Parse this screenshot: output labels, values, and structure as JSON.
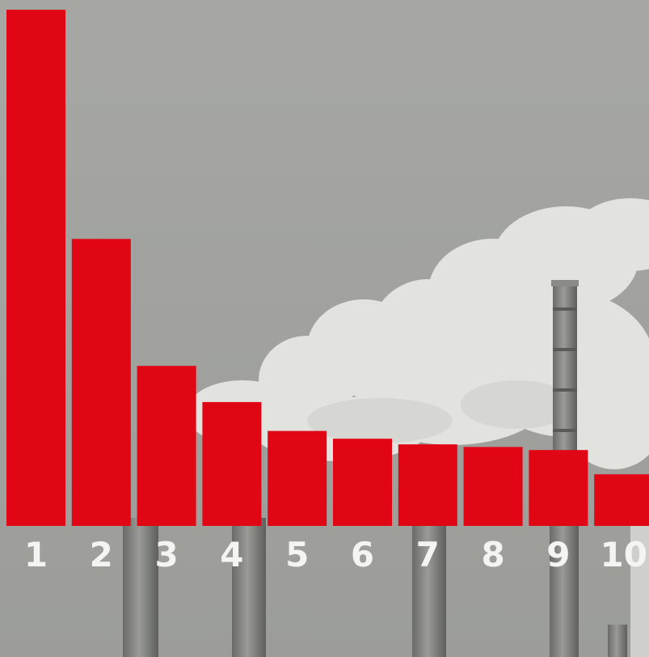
{
  "colors": {
    "bar": "#e10613",
    "tick_label": "#f4f4f2",
    "sky": "#a3a4a0",
    "smoke": "#e3e3df",
    "chimney": "#7d7e7b"
  },
  "background": {
    "image": "industrial-chimneys-smoke-photo"
  },
  "chart_data": {
    "type": "bar",
    "categories": [
      "1",
      "2",
      "3",
      "4",
      "5",
      "6",
      "7",
      "8",
      "9",
      "10"
    ],
    "values": [
      100,
      55.6,
      31,
      24,
      18.4,
      16.9,
      15.8,
      15.3,
      14.7,
      10
    ],
    "title": "",
    "xlabel": "",
    "ylabel": "",
    "ylim": [
      0,
      100
    ],
    "grid": false,
    "legend": "none"
  }
}
